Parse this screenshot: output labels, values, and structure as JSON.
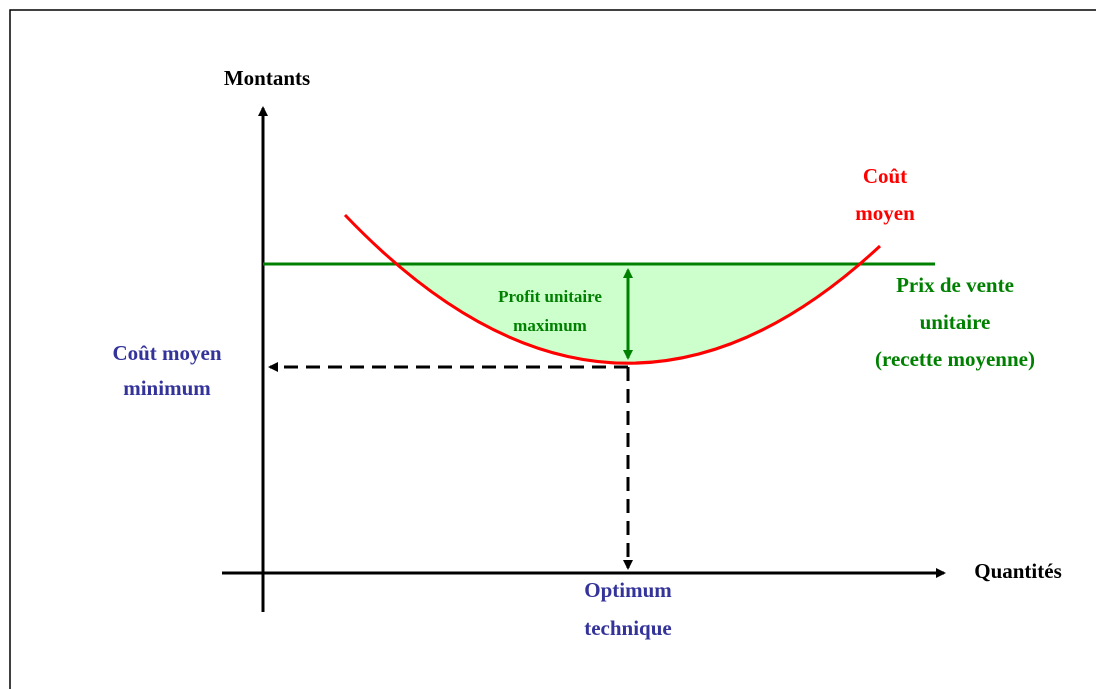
{
  "axes": {
    "y_label": "Montants",
    "x_label": "Quantités"
  },
  "curves": {
    "average_cost": [
      "Coût",
      "moyen"
    ],
    "price": [
      "Prix de vente",
      "unitaire",
      "(recette moyenne)"
    ]
  },
  "annotations": {
    "profit": [
      "Profit unitaire",
      "maximum"
    ],
    "min_cost": [
      "Coût moyen",
      "minimum"
    ],
    "optimum": [
      "Optimum",
      "technique"
    ]
  }
}
